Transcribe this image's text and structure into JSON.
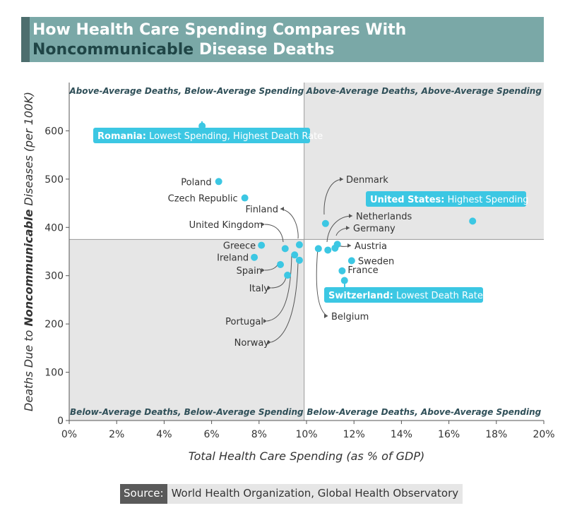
{
  "title": {
    "line1": "How Health Care Spending Compares With",
    "line2_dark": "Noncommunicable",
    "line2_rest": " Disease Deaths"
  },
  "colors": {
    "title_bar": "#7aa8a7",
    "title_accent": "#4d6e6e",
    "title_dark": "#1f4546",
    "point": "#3cc7e3",
    "callout": "#3cc7e3",
    "quadrant_shade": "#e6e6e6",
    "quadrant_label": "#2f4f58"
  },
  "source": {
    "label": "Source:",
    "text": "World Health Organization, Global Health Observatory"
  },
  "chart_data": {
    "type": "scatter",
    "xlabel": "Total Health Care Spending (as % of GDP)",
    "ylabel_pre": "Deaths Due to ",
    "ylabel_bold": "Noncommunicable",
    "ylabel_post": " Diseases (per 100K)",
    "xlim": [
      0,
      20
    ],
    "ylim": [
      0,
      700
    ],
    "x_ticks": [
      0,
      2,
      4,
      6,
      8,
      10,
      12,
      14,
      16,
      18,
      20
    ],
    "x_tick_labels": [
      "0%",
      "2%",
      "4%",
      "6%",
      "8%",
      "10%",
      "12%",
      "14%",
      "16%",
      "18%",
      "20%"
    ],
    "y_ticks": [
      0,
      100,
      200,
      300,
      400,
      500,
      600
    ],
    "y_tick_labels": [
      "0",
      "100",
      "200",
      "300",
      "400",
      "500",
      "600"
    ],
    "average_x": 9.9,
    "average_y": 375,
    "quadrant_labels": {
      "top_left": "Above-Average Deaths, Below-Average Spending",
      "top_right": "Above-Average Deaths, Above-Average Spending",
      "bottom_left": "Below-Average Deaths, Below-Average Spending",
      "bottom_right": "Below-Average Deaths, Above-Average Spending"
    },
    "points": [
      {
        "label": "Romania",
        "x": 5.6,
        "y": 610
      },
      {
        "label": "Poland",
        "x": 6.3,
        "y": 495
      },
      {
        "label": "Czech Republic",
        "x": 7.4,
        "y": 461
      },
      {
        "label": "Greece",
        "x": 8.1,
        "y": 363
      },
      {
        "label": "Ireland",
        "x": 7.8,
        "y": 338
      },
      {
        "label": "United Kingdom",
        "x": 9.1,
        "y": 356
      },
      {
        "label": "Finland",
        "x": 9.7,
        "y": 364
      },
      {
        "label": "Spain",
        "x": 8.9,
        "y": 323
      },
      {
        "label": "Italy",
        "x": 9.2,
        "y": 301
      },
      {
        "label": "Portugal",
        "x": 9.5,
        "y": 343
      },
      {
        "label": "Norway",
        "x": 9.7,
        "y": 332
      },
      {
        "label": "Belgium",
        "x": 10.5,
        "y": 356
      },
      {
        "label": "Denmark",
        "x": 10.8,
        "y": 408
      },
      {
        "label": "Netherlands",
        "x": 10.9,
        "y": 353
      },
      {
        "label": "Germany",
        "x": 11.3,
        "y": 365
      },
      {
        "label": "Austria",
        "x": 11.2,
        "y": 357
      },
      {
        "label": "Sweden",
        "x": 11.9,
        "y": 331
      },
      {
        "label": "France",
        "x": 11.5,
        "y": 310
      },
      {
        "label": "Switzerland",
        "x": 11.6,
        "y": 290
      },
      {
        "label": "United States",
        "x": 17.0,
        "y": 413
      }
    ],
    "callouts": [
      {
        "country": "Romania",
        "bold": "Romania:",
        "text": " Lowest Spending, Highest Death Rate"
      },
      {
        "country": "United States",
        "bold": "United States:",
        "text": " Highest Spending"
      },
      {
        "country": "Switzerland",
        "bold": "Switzerland:",
        "text": " Lowest Death Rate"
      }
    ]
  }
}
